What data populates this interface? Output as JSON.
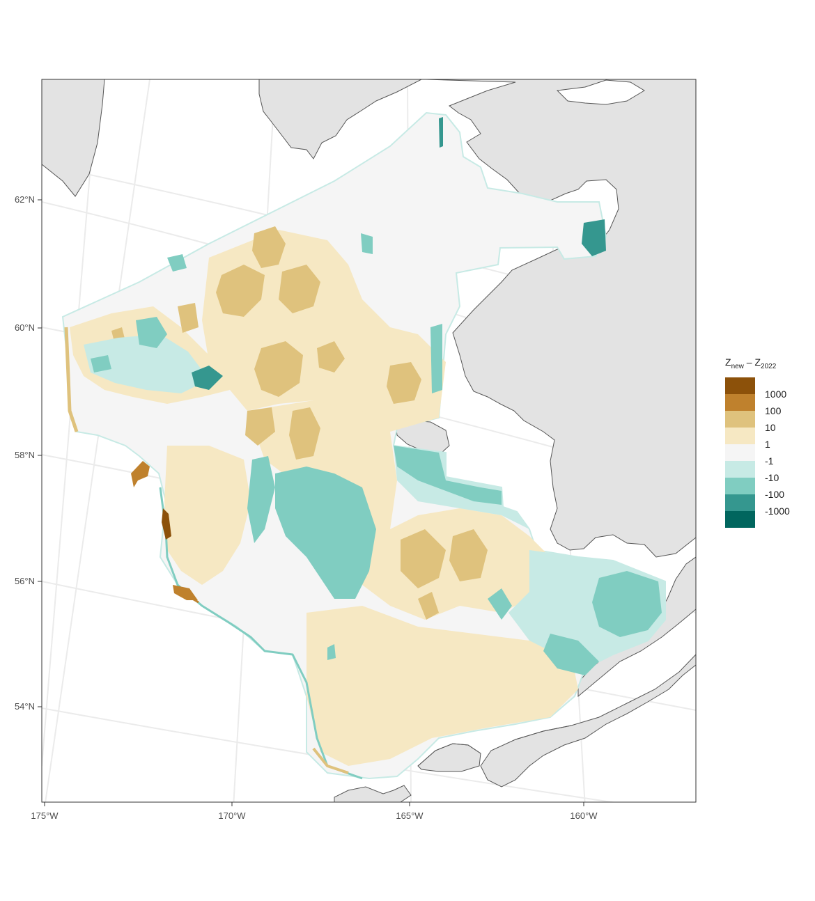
{
  "legend": {
    "title_main": "Z",
    "title_sub_1": "new",
    "title_minus": " – Z",
    "title_sub_2": "2022",
    "bins": [
      {
        "color": "#8c510a",
        "label": "1000"
      },
      {
        "color": "#bf812d",
        "label": "100"
      },
      {
        "color": "#dfc27d",
        "label": "10"
      },
      {
        "color": "#f6e8c3",
        "label": "1"
      },
      {
        "color": "#f5f5f5",
        "label": "-1"
      },
      {
        "color": "#c7eae5",
        "label": "-10"
      },
      {
        "color": "#80cdc1",
        "label": "-100"
      },
      {
        "color": "#35978f",
        "label": "-1000"
      },
      {
        "color": "#01665e",
        "label": ""
      }
    ]
  },
  "axes": {
    "lat_labels": [
      "62°N",
      "60°N",
      "58°N",
      "56°N",
      "54°N"
    ],
    "lon_labels": [
      "175°W",
      "170°W",
      "165°W",
      "160°W"
    ]
  },
  "colors": {
    "land": "#e3e3e3",
    "coast": "#555555",
    "graticule": "#ebebeb",
    "panel_border": "#333333"
  }
}
